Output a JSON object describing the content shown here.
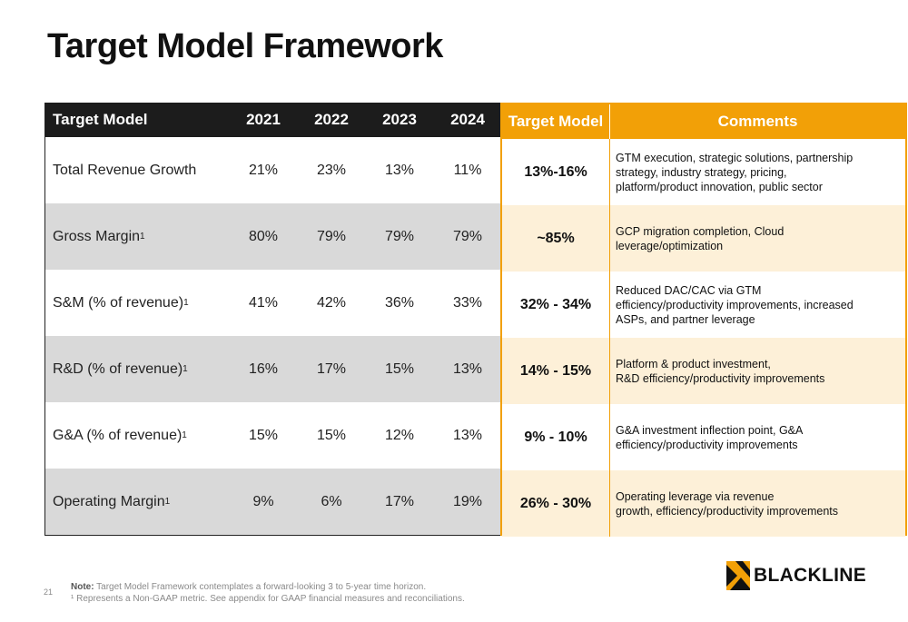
{
  "title": "Target Model Framework",
  "table": {
    "headers": {
      "metric": "Target Model",
      "years": [
        "2021",
        "2022",
        "2023",
        "2024"
      ],
      "target": "Target Model",
      "comments": "Comments"
    },
    "rows": [
      {
        "metric": "Total Revenue Growth",
        "sup": "",
        "values": [
          "21%",
          "23%",
          "13%",
          "11%"
        ],
        "target": "13%-16%",
        "comments": [
          "GTM execution, strategic solutions, partnership",
          "strategy, industry strategy, pricing,",
          "platform/product innovation, public sector"
        ]
      },
      {
        "metric": "Gross Margin",
        "sup": "1",
        "values": [
          "80%",
          "79%",
          "79%",
          "79%"
        ],
        "target": "~85%",
        "comments": [
          "GCP migration completion, Cloud",
          "leverage/optimization"
        ]
      },
      {
        "metric": "S&M (% of revenue)",
        "sup": "1",
        "values": [
          "41%",
          "42%",
          "36%",
          "33%"
        ],
        "target": "32% - 34%",
        "comments": [
          "Reduced DAC/CAC via GTM",
          "efficiency/productivity improvements, increased",
          "ASPs, and partner leverage"
        ]
      },
      {
        "metric": "R&D (% of revenue)",
        "sup": "1",
        "values": [
          "16%",
          "17%",
          "15%",
          "13%"
        ],
        "target": "14% - 15%",
        "comments": [
          "Platform & product investment,",
          "R&D efficiency/productivity improvements"
        ]
      },
      {
        "metric": "G&A (% of revenue)",
        "sup": "1",
        "values": [
          "15%",
          "15%",
          "12%",
          "13%"
        ],
        "target": "9% - 10%",
        "comments": [
          "G&A investment inflection point, G&A",
          "efficiency/productivity improvements"
        ]
      },
      {
        "metric": "Operating Margin",
        "sup": "1",
        "values": [
          "9%",
          "6%",
          "17%",
          "19%"
        ],
        "target": "26% - 30%",
        "comments": [
          "Operating leverage via revenue",
          "growth, efficiency/productivity improvements"
        ]
      }
    ]
  },
  "footer": {
    "page_number": "21",
    "note_label": "Note:",
    "note_text": " Target Model Framework contemplates a forward-looking 3 to 5-year time horizon.",
    "footnote": "¹ Represents a Non-GAAP metric. See appendix for GAAP financial measures and reconciliations."
  },
  "logo": {
    "text": "BLACKLINE",
    "icon": "blackline-logo-icon"
  },
  "colors": {
    "accent": "#f2a007",
    "header_dark": "#1c1c1c",
    "row_gray": "#d9d9d9",
    "row_cream": "#fdf0d8"
  }
}
